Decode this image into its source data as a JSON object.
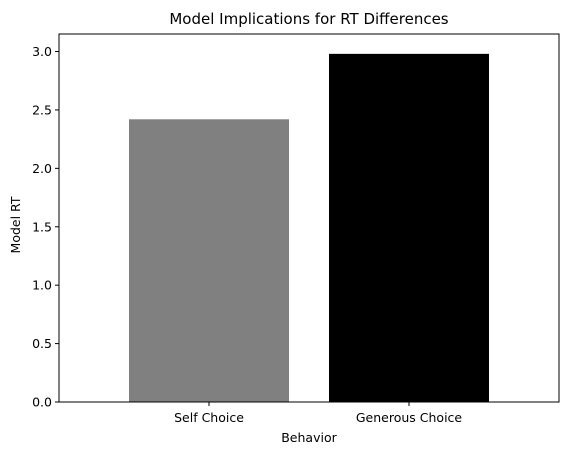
{
  "chart_data": {
    "type": "bar",
    "title": "Model Implications for RT Differences",
    "xlabel": "Behavior",
    "ylabel": "Model RT",
    "categories": [
      "Self Choice",
      "Generous Choice"
    ],
    "values": [
      2.42,
      2.98
    ],
    "colors": [
      "#808080",
      "#000000"
    ],
    "ylim": [
      0,
      3.15
    ],
    "yticks": [
      "0.0",
      "0.5",
      "1.0",
      "1.5",
      "2.0",
      "2.5",
      "3.0"
    ],
    "grid": false,
    "legend": "none"
  }
}
